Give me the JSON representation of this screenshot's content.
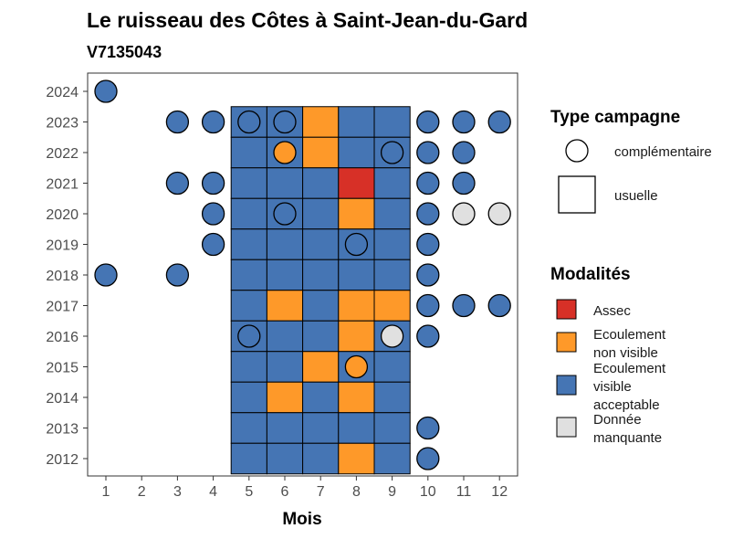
{
  "chart_data": {
    "type": "heatmap",
    "title": "Le ruisseau des Côtes à Saint-Jean-du-Gard",
    "subtitle": "V7135043",
    "xlabel": "Mois",
    "ylabel": "",
    "x_ticks": [
      1,
      2,
      3,
      4,
      5,
      6,
      7,
      8,
      9,
      10,
      11,
      12
    ],
    "y_ticks": [
      2012,
      2013,
      2014,
      2015,
      2016,
      2017,
      2018,
      2019,
      2020,
      2021,
      2022,
      2023,
      2024
    ],
    "grid": false,
    "colors": {
      "Assec": "#d73027",
      "Ecoulement non visible": "#fe9929",
      "Ecoulement visible acceptable": "#4575b4",
      "Donnée manquante": "#e0e0e0"
    },
    "tiles_usuelle": [
      {
        "year": 2023,
        "months": [
          5,
          6,
          7,
          8,
          9
        ],
        "values": [
          "Ecoulement visible acceptable",
          "Ecoulement visible acceptable",
          "Ecoulement non visible",
          "Ecoulement visible acceptable",
          "Ecoulement visible acceptable"
        ]
      },
      {
        "year": 2022,
        "months": [
          5,
          6,
          7,
          8,
          9
        ],
        "values": [
          "Ecoulement visible acceptable",
          "Ecoulement visible acceptable",
          "Ecoulement non visible",
          "Ecoulement visible acceptable",
          "Ecoulement visible acceptable"
        ]
      },
      {
        "year": 2021,
        "months": [
          5,
          6,
          7,
          8,
          9
        ],
        "values": [
          "Ecoulement visible acceptable",
          "Ecoulement visible acceptable",
          "Ecoulement visible acceptable",
          "Assec",
          "Ecoulement visible acceptable"
        ]
      },
      {
        "year": 2020,
        "months": [
          5,
          6,
          7,
          8,
          9
        ],
        "values": [
          "Ecoulement visible acceptable",
          "Ecoulement visible acceptable",
          "Ecoulement visible acceptable",
          "Ecoulement non visible",
          "Ecoulement visible acceptable"
        ]
      },
      {
        "year": 2019,
        "months": [
          5,
          6,
          7,
          8,
          9
        ],
        "values": [
          "Ecoulement visible acceptable",
          "Ecoulement visible acceptable",
          "Ecoulement visible acceptable",
          "Ecoulement visible acceptable",
          "Ecoulement visible acceptable"
        ]
      },
      {
        "year": 2018,
        "months": [
          5,
          6,
          7,
          8,
          9
        ],
        "values": [
          "Ecoulement visible acceptable",
          "Ecoulement visible acceptable",
          "Ecoulement visible acceptable",
          "Ecoulement visible acceptable",
          "Ecoulement visible acceptable"
        ]
      },
      {
        "year": 2017,
        "months": [
          5,
          6,
          7,
          8,
          9
        ],
        "values": [
          "Ecoulement visible acceptable",
          "Ecoulement non visible",
          "Ecoulement visible acceptable",
          "Ecoulement non visible",
          "Ecoulement non visible"
        ]
      },
      {
        "year": 2016,
        "months": [
          5,
          6,
          7,
          8,
          9
        ],
        "values": [
          "Ecoulement visible acceptable",
          "Ecoulement visible acceptable",
          "Ecoulement visible acceptable",
          "Ecoulement non visible",
          "Ecoulement visible acceptable"
        ]
      },
      {
        "year": 2015,
        "months": [
          5,
          6,
          7,
          8,
          9
        ],
        "values": [
          "Ecoulement visible acceptable",
          "Ecoulement visible acceptable",
          "Ecoulement non visible",
          "Ecoulement visible acceptable",
          "Ecoulement visible acceptable"
        ]
      },
      {
        "year": 2014,
        "months": [
          5,
          6,
          7,
          8,
          9
        ],
        "values": [
          "Ecoulement visible acceptable",
          "Ecoulement non visible",
          "Ecoulement visible acceptable",
          "Ecoulement non visible",
          "Ecoulement visible acceptable"
        ]
      },
      {
        "year": 2013,
        "months": [
          5,
          6,
          7,
          8,
          9
        ],
        "values": [
          "Ecoulement visible acceptable",
          "Ecoulement visible acceptable",
          "Ecoulement visible acceptable",
          "Ecoulement visible acceptable",
          "Ecoulement visible acceptable"
        ]
      },
      {
        "year": 2012,
        "months": [
          5,
          6,
          7,
          8,
          9
        ],
        "values": [
          "Ecoulement visible acceptable",
          "Ecoulement visible acceptable",
          "Ecoulement visible acceptable",
          "Ecoulement non visible",
          "Ecoulement visible acceptable"
        ]
      }
    ],
    "points_complementaire": [
      {
        "year": 2024,
        "month": 1,
        "value": "Ecoulement visible acceptable"
      },
      {
        "year": 2023,
        "month": 3,
        "value": "Ecoulement visible acceptable"
      },
      {
        "year": 2023,
        "month": 4,
        "value": "Ecoulement visible acceptable"
      },
      {
        "year": 2023,
        "month": 5,
        "value": "Ecoulement visible acceptable"
      },
      {
        "year": 2023,
        "month": 6,
        "value": "Ecoulement visible acceptable"
      },
      {
        "year": 2023,
        "month": 10,
        "value": "Ecoulement visible acceptable"
      },
      {
        "year": 2023,
        "month": 11,
        "value": "Ecoulement visible acceptable"
      },
      {
        "year": 2023,
        "month": 12,
        "value": "Ecoulement visible acceptable"
      },
      {
        "year": 2022,
        "month": 6,
        "value": "Ecoulement non visible"
      },
      {
        "year": 2022,
        "month": 9,
        "value": "Ecoulement visible acceptable"
      },
      {
        "year": 2022,
        "month": 10,
        "value": "Ecoulement visible acceptable"
      },
      {
        "year": 2022,
        "month": 11,
        "value": "Ecoulement visible acceptable"
      },
      {
        "year": 2021,
        "month": 3,
        "value": "Ecoulement visible acceptable"
      },
      {
        "year": 2021,
        "month": 4,
        "value": "Ecoulement visible acceptable"
      },
      {
        "year": 2021,
        "month": 10,
        "value": "Ecoulement visible acceptable"
      },
      {
        "year": 2021,
        "month": 11,
        "value": "Ecoulement visible acceptable"
      },
      {
        "year": 2020,
        "month": 4,
        "value": "Ecoulement visible acceptable"
      },
      {
        "year": 2020,
        "month": 6,
        "value": "Ecoulement visible acceptable"
      },
      {
        "year": 2020,
        "month": 10,
        "value": "Ecoulement visible acceptable"
      },
      {
        "year": 2020,
        "month": 11,
        "value": "Donnée manquante"
      },
      {
        "year": 2020,
        "month": 12,
        "value": "Donnée manquante"
      },
      {
        "year": 2019,
        "month": 4,
        "value": "Ecoulement visible acceptable"
      },
      {
        "year": 2019,
        "month": 8,
        "value": "Ecoulement visible acceptable"
      },
      {
        "year": 2019,
        "month": 10,
        "value": "Ecoulement visible acceptable"
      },
      {
        "year": 2018,
        "month": 1,
        "value": "Ecoulement visible acceptable"
      },
      {
        "year": 2018,
        "month": 3,
        "value": "Ecoulement visible acceptable"
      },
      {
        "year": 2018,
        "month": 10,
        "value": "Ecoulement visible acceptable"
      },
      {
        "year": 2017,
        "month": 10,
        "value": "Ecoulement visible acceptable"
      },
      {
        "year": 2017,
        "month": 11,
        "value": "Ecoulement visible acceptable"
      },
      {
        "year": 2017,
        "month": 12,
        "value": "Ecoulement visible acceptable"
      },
      {
        "year": 2016,
        "month": 5,
        "value": "Ecoulement visible acceptable"
      },
      {
        "year": 2016,
        "month": 9,
        "value": "Donnée manquante"
      },
      {
        "year": 2016,
        "month": 10,
        "value": "Ecoulement visible acceptable"
      },
      {
        "year": 2015,
        "month": 8,
        "value": "Ecoulement non visible"
      },
      {
        "year": 2013,
        "month": 10,
        "value": "Ecoulement visible acceptable"
      },
      {
        "year": 2012,
        "month": 10,
        "value": "Ecoulement visible acceptable"
      }
    ],
    "legend_type": {
      "title": "Type campagne",
      "items": [
        {
          "label": "complémentaire",
          "shape": "circle"
        },
        {
          "label": "usuelle",
          "shape": "square"
        }
      ]
    },
    "legend_modalites": {
      "title": "Modalités",
      "items": [
        {
          "key": "Assec",
          "lines": [
            "Assec"
          ]
        },
        {
          "key": "Ecoulement non visible",
          "lines": [
            "Ecoulement",
            "non visible"
          ]
        },
        {
          "key": "Ecoulement visible acceptable",
          "lines": [
            "Ecoulement",
            "visible",
            "acceptable"
          ]
        },
        {
          "key": "Donnée manquante",
          "lines": [
            "Donnée",
            "manquante"
          ]
        }
      ]
    },
    "legend_position": "right"
  }
}
